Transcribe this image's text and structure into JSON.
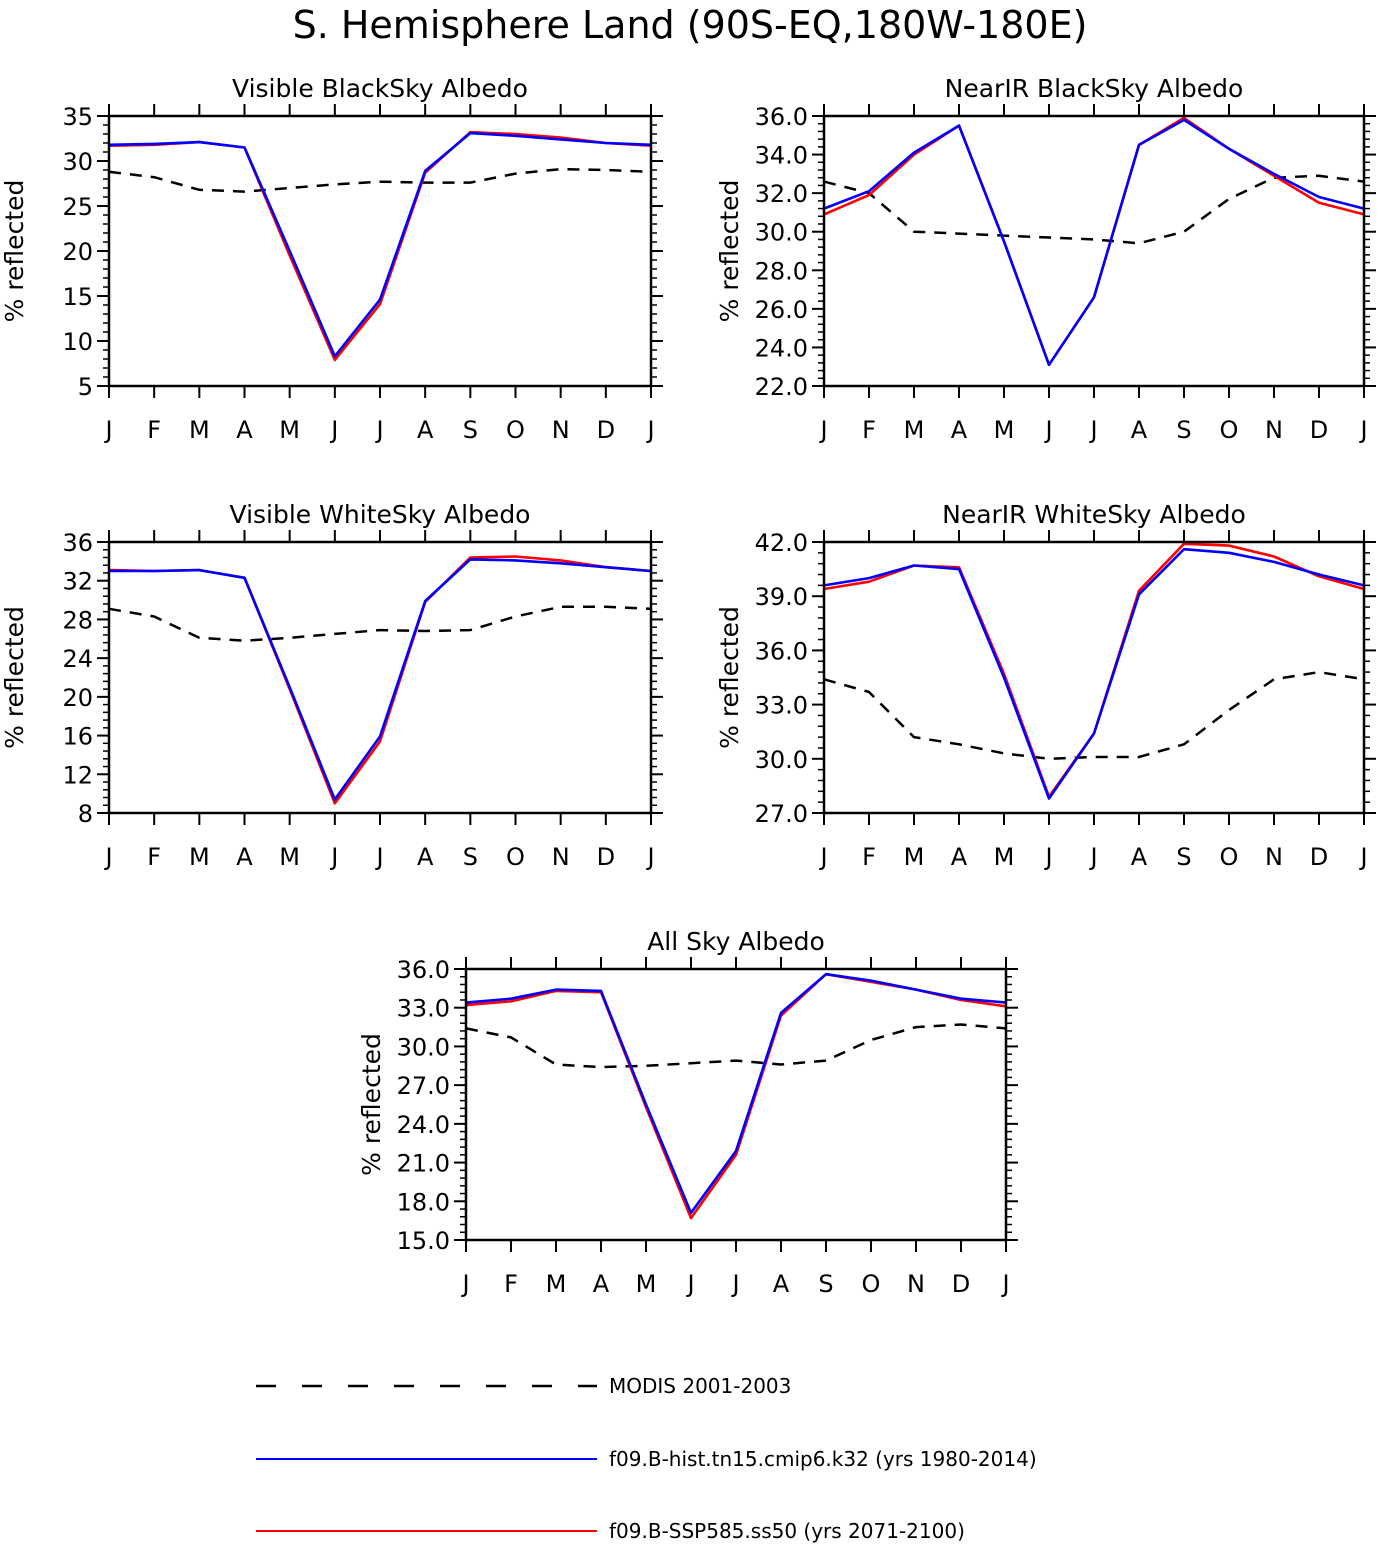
{
  "title": "S. Hemisphere Land (90S-EQ,180W-180E)",
  "colors": {
    "modis": "#000000",
    "hist": "#0000ff",
    "ssp": "#ff0000"
  },
  "legend": [
    {
      "key": "modis",
      "label": "MODIS 2001-2003",
      "style": "dashed"
    },
    {
      "key": "hist",
      "label": "f09.B-hist.tn15.cmip6.k32 (yrs 1980-2014)",
      "style": "solid"
    },
    {
      "key": "ssp",
      "label": "f09.B-SSP585.ss50 (yrs 2071-2100)",
      "style": "solid"
    }
  ],
  "chart_data": [
    {
      "type": "line",
      "title": "Visible BlackSky Albedo",
      "ylabel": "% reflected",
      "categories": [
        "J",
        "F",
        "M",
        "A",
        "M",
        "J",
        "J",
        "A",
        "S",
        "O",
        "N",
        "D",
        "J"
      ],
      "ylim": [
        5,
        35
      ],
      "yticks": [
        "5",
        "10",
        "15",
        "20",
        "25",
        "30",
        "35"
      ],
      "series": [
        {
          "key": "modis",
          "name": "MODIS 2001-2003",
          "values": [
            28.8,
            28.2,
            26.8,
            26.6,
            27.0,
            27.4,
            27.7,
            27.6,
            27.6,
            28.6,
            29.1,
            29.0,
            28.8
          ]
        },
        {
          "key": "hist",
          "name": "f09.B-hist.tn15.cmip6.k32 (yrs 1980-2014)",
          "values": [
            31.8,
            31.9,
            32.1,
            31.5,
            20.0,
            8.3,
            14.6,
            28.9,
            33.1,
            32.8,
            32.4,
            32.0,
            31.8
          ]
        },
        {
          "key": "ssp",
          "name": "f09.B-SSP585.ss50 (yrs 2071-2100)",
          "values": [
            31.7,
            31.8,
            32.1,
            31.5,
            19.5,
            7.9,
            14.1,
            28.7,
            33.2,
            33.0,
            32.6,
            32.0,
            31.7
          ]
        }
      ]
    },
    {
      "type": "line",
      "title": "NearIR BlackSky Albedo",
      "ylabel": "% reflected",
      "categories": [
        "J",
        "F",
        "M",
        "A",
        "M",
        "J",
        "J",
        "A",
        "S",
        "O",
        "N",
        "D",
        "J"
      ],
      "ylim": [
        22.0,
        36.0
      ],
      "yticks": [
        "22.0",
        "24.0",
        "26.0",
        "28.0",
        "30.0",
        "32.0",
        "34.0",
        "36.0"
      ],
      "series": [
        {
          "key": "modis",
          "name": "MODIS 2001-2003",
          "values": [
            32.6,
            32.0,
            30.0,
            29.9,
            29.8,
            29.7,
            29.6,
            29.4,
            30.0,
            31.7,
            32.8,
            32.9,
            32.6
          ]
        },
        {
          "key": "hist",
          "name": "f09.B-hist.tn15.cmip6.k32 (yrs 1980-2014)",
          "values": [
            31.2,
            32.1,
            34.1,
            35.5,
            29.5,
            23.1,
            26.6,
            34.5,
            35.8,
            34.3,
            33.0,
            31.8,
            31.2
          ]
        },
        {
          "key": "ssp",
          "name": "f09.B-SSP585.ss50 (yrs 2071-2100)",
          "values": [
            30.9,
            31.9,
            34.0,
            35.5,
            29.5,
            23.1,
            26.6,
            34.5,
            35.9,
            34.3,
            32.9,
            31.5,
            30.9
          ]
        }
      ]
    },
    {
      "type": "line",
      "title": "Visible WhiteSky Albedo",
      "ylabel": "% reflected",
      "categories": [
        "J",
        "F",
        "M",
        "A",
        "M",
        "J",
        "J",
        "A",
        "S",
        "O",
        "N",
        "D",
        "J"
      ],
      "ylim": [
        8,
        36
      ],
      "yticks": [
        "8",
        "12",
        "16",
        "20",
        "24",
        "28",
        "32",
        "36"
      ],
      "series": [
        {
          "key": "modis",
          "name": "MODIS 2001-2003",
          "values": [
            29.1,
            28.3,
            26.1,
            25.8,
            26.1,
            26.5,
            26.9,
            26.8,
            26.9,
            28.3,
            29.3,
            29.3,
            29.1
          ]
        },
        {
          "key": "hist",
          "name": "f09.B-hist.tn15.cmip6.k32 (yrs 1980-2014)",
          "values": [
            33.0,
            33.0,
            33.1,
            32.3,
            21.0,
            9.4,
            15.9,
            29.9,
            34.2,
            34.1,
            33.8,
            33.4,
            33.0
          ]
        },
        {
          "key": "ssp",
          "name": "f09.B-SSP585.ss50 (yrs 2071-2100)",
          "values": [
            33.1,
            33.0,
            33.1,
            32.3,
            20.8,
            9.0,
            15.4,
            29.8,
            34.4,
            34.5,
            34.1,
            33.4,
            33.0
          ]
        }
      ]
    },
    {
      "type": "line",
      "title": "NearIR WhiteSky Albedo",
      "ylabel": "% reflected",
      "categories": [
        "J",
        "F",
        "M",
        "A",
        "M",
        "J",
        "J",
        "A",
        "S",
        "O",
        "N",
        "D",
        "J"
      ],
      "ylim": [
        27.0,
        42.0
      ],
      "yticks": [
        "27.0",
        "30.0",
        "33.0",
        "36.0",
        "39.0",
        "42.0"
      ],
      "series": [
        {
          "key": "modis",
          "name": "MODIS 2001-2003",
          "values": [
            34.4,
            33.7,
            31.2,
            30.8,
            30.3,
            30.0,
            30.1,
            30.1,
            30.8,
            32.7,
            34.4,
            34.8,
            34.4
          ]
        },
        {
          "key": "hist",
          "name": "f09.B-hist.tn15.cmip6.k32 (yrs 1980-2014)",
          "values": [
            39.6,
            40.0,
            40.7,
            40.5,
            34.5,
            27.8,
            31.4,
            39.1,
            41.6,
            41.4,
            40.9,
            40.2,
            39.6
          ]
        },
        {
          "key": "ssp",
          "name": "f09.B-SSP585.ss50 (yrs 2071-2100)",
          "values": [
            39.4,
            39.8,
            40.7,
            40.6,
            34.7,
            27.9,
            31.4,
            39.3,
            41.9,
            41.8,
            41.2,
            40.1,
            39.4
          ]
        }
      ]
    },
    {
      "type": "line",
      "title": "All Sky Albedo",
      "ylabel": "% reflected",
      "categories": [
        "J",
        "F",
        "M",
        "A",
        "M",
        "J",
        "J",
        "A",
        "S",
        "O",
        "N",
        "D",
        "J"
      ],
      "ylim": [
        15.0,
        36.0
      ],
      "yticks": [
        "15.0",
        "18.0",
        "21.0",
        "24.0",
        "27.0",
        "30.0",
        "33.0",
        "36.0"
      ],
      "series": [
        {
          "key": "modis",
          "name": "MODIS 2001-2003",
          "values": [
            31.4,
            30.7,
            28.6,
            28.4,
            28.5,
            28.7,
            28.9,
            28.6,
            28.9,
            30.5,
            31.5,
            31.7,
            31.4
          ]
        },
        {
          "key": "hist",
          "name": "f09.B-hist.tn15.cmip6.k32 (yrs 1980-2014)",
          "values": [
            33.4,
            33.7,
            34.4,
            34.3,
            25.5,
            17.1,
            21.9,
            32.6,
            35.6,
            35.1,
            34.4,
            33.7,
            33.4
          ]
        },
        {
          "key": "ssp",
          "name": "f09.B-SSP585.ss50 (yrs 2071-2100)",
          "values": [
            33.2,
            33.5,
            34.3,
            34.2,
            25.3,
            16.7,
            21.6,
            32.4,
            35.6,
            35.0,
            34.4,
            33.6,
            33.1
          ]
        }
      ]
    }
  ]
}
